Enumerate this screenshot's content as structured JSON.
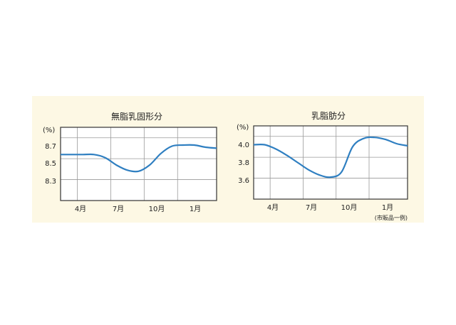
{
  "colors": {
    "panel": "#fdf8e4",
    "plot": "#ffffff",
    "grid": "#9a9a9a",
    "frame": "#333333",
    "line": "#2f7fc1"
  },
  "note": "(市販品一例)",
  "chart_data": [
    {
      "type": "line",
      "title": "無脂乳固形分",
      "unit_label": "(%)",
      "categories": [
        "4月",
        "7月",
        "10月",
        "1月"
      ],
      "yticks": [
        "8.7",
        "8.5",
        "8.3"
      ],
      "ylim": [
        8.1,
        8.8
      ],
      "x": [
        2.0,
        3.0,
        4.0,
        5.0,
        6.0,
        7.0,
        8.0,
        9.0,
        10.0,
        11.0,
        12.0,
        13.0,
        14.0
      ],
      "values": [
        8.54,
        8.54,
        8.54,
        8.51,
        8.44,
        8.39,
        8.38,
        8.44,
        8.55,
        8.62,
        8.63,
        8.63,
        8.61
      ],
      "grid": true
    },
    {
      "type": "line",
      "title": "乳脂肪分",
      "unit_label": "(%)",
      "categories": [
        "4月",
        "7月",
        "10月",
        "1月"
      ],
      "yticks": [
        "4.0",
        "3.8",
        "3.6"
      ],
      "ylim": [
        3.4,
        4.1
      ],
      "x": [
        2.0,
        3.0,
        4.0,
        5.0,
        6.0,
        7.0,
        8.0,
        9.0,
        10.0,
        11.0,
        12.0,
        13.0,
        14.0
      ],
      "values": [
        3.92,
        3.88,
        3.82,
        3.75,
        3.68,
        3.63,
        3.61,
        3.66,
        3.9,
        3.98,
        3.99,
        3.97,
        3.93
      ],
      "grid": true
    }
  ]
}
